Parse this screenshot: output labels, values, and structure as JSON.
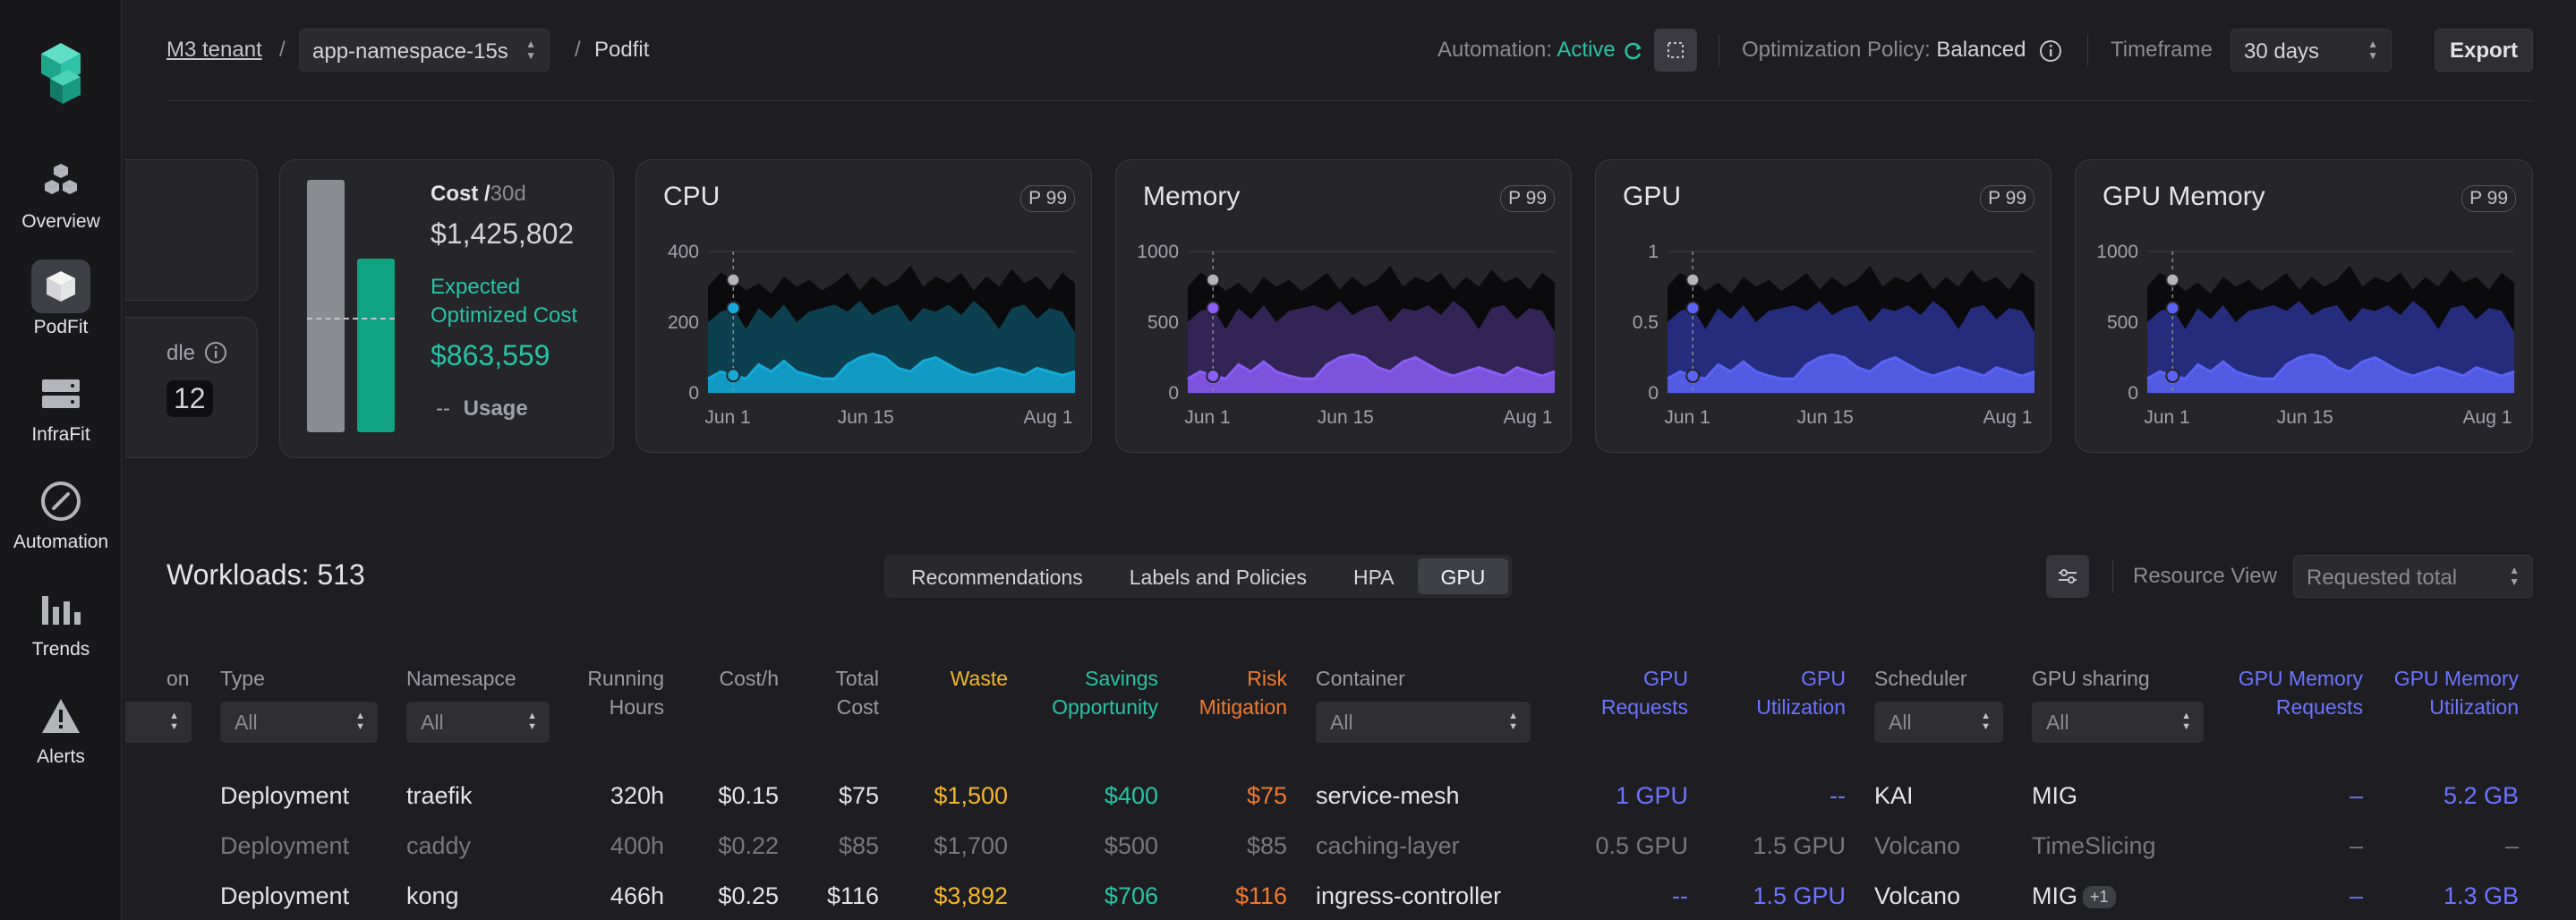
{
  "sidebar": {
    "items": [
      {
        "label": "Overview",
        "icon": "cubes-icon"
      },
      {
        "label": "PodFit",
        "icon": "cube-icon",
        "active": true
      },
      {
        "label": "InfraFit",
        "icon": "server-icon"
      },
      {
        "label": "Automation",
        "icon": "compass-icon"
      },
      {
        "label": "Trends",
        "icon": "bar-chart-icon"
      },
      {
        "label": "Alerts",
        "icon": "warning-icon"
      }
    ]
  },
  "header": {
    "tenant": "M3 tenant",
    "sep": "/",
    "namespace": "app-namespace-15s",
    "page": "Podfit",
    "automation_label": "Automation:",
    "automation_value": "Active",
    "policy_label": "Optimization Policy:",
    "policy_value": "Balanced",
    "timeframe_label": "Timeframe",
    "timeframe_value": "30 days",
    "export_label": "Export"
  },
  "partial_card": {
    "label_fragment": "dle",
    "value_fragment": "12"
  },
  "cost_card": {
    "title": "Cost /",
    "period": "30d",
    "cost": "$1,425,802",
    "expected_label_1": "Expected",
    "expected_label_2": "Optimized Cost",
    "optimized_cost": "$863,559",
    "usage_dash": "--",
    "usage_label": "Usage",
    "colors": {
      "current": "#8c8c93",
      "optimized": "#10a37f"
    }
  },
  "chart_data": [
    {
      "type": "area",
      "title": "CPU",
      "badge": "P 99",
      "yticks": [
        "400",
        "200",
        "0"
      ],
      "ylim": [
        0,
        400
      ],
      "xticks": [
        "Jun 1",
        "Jun 15",
        "Aug 1"
      ],
      "colors": {
        "top": "#0b0b0d",
        "mid": "#0e4a5c",
        "low": "#14a9d6"
      },
      "series": [
        {
          "values": [
            300,
            340,
            320,
            290,
            310,
            280,
            330,
            300,
            320,
            290,
            310,
            340,
            290,
            330,
            300,
            320,
            360,
            300,
            330,
            310,
            340,
            290,
            330,
            300,
            350,
            310,
            330,
            290,
            340,
            310
          ]
        },
        {
          "values": [
            200,
            230,
            240,
            180,
            240,
            210,
            250,
            200,
            230,
            240,
            250,
            230,
            260,
            220,
            240,
            250,
            200,
            240,
            230,
            250,
            220,
            260,
            230,
            180,
            240,
            250,
            210,
            240,
            230,
            170
          ]
        },
        {
          "values": [
            40,
            60,
            50,
            40,
            80,
            60,
            90,
            60,
            50,
            40,
            40,
            80,
            100,
            110,
            100,
            70,
            60,
            90,
            100,
            80,
            60,
            50,
            60,
            70,
            60,
            50,
            70,
            60,
            50,
            60
          ]
        }
      ]
    },
    {
      "type": "area",
      "title": "Memory",
      "badge": "P 99",
      "yticks": [
        "1000",
        "500",
        "0"
      ],
      "ylim": [
        0,
        1000
      ],
      "xticks": [
        "Jun 1",
        "Jun 15",
        "Aug 1"
      ],
      "colors": {
        "top": "#0b0b0d",
        "mid": "#3a2a64",
        "low": "#8b5cf6"
      },
      "series": [
        {
          "values": [
            750,
            850,
            800,
            720,
            780,
            700,
            820,
            750,
            800,
            720,
            780,
            850,
            730,
            820,
            750,
            800,
            900,
            750,
            820,
            780,
            850,
            730,
            820,
            750,
            870,
            780,
            820,
            730,
            850,
            780
          ]
        },
        {
          "values": [
            500,
            580,
            600,
            450,
            600,
            520,
            620,
            500,
            580,
            600,
            620,
            580,
            650,
            550,
            600,
            620,
            500,
            600,
            580,
            620,
            550,
            650,
            580,
            450,
            600,
            620,
            520,
            600,
            580,
            430
          ]
        },
        {
          "values": [
            100,
            150,
            120,
            100,
            200,
            150,
            220,
            150,
            120,
            100,
            100,
            200,
            250,
            270,
            250,
            180,
            150,
            220,
            250,
            200,
            150,
            120,
            150,
            180,
            150,
            120,
            180,
            150,
            120,
            150
          ]
        }
      ]
    },
    {
      "type": "area",
      "title": "GPU",
      "badge": "P 99",
      "yticks": [
        "1",
        "0.5",
        "0"
      ],
      "ylim": [
        0,
        1
      ],
      "xticks": [
        "Jun 1",
        "Jun 15",
        "Aug 1"
      ],
      "colors": {
        "top": "#0b0b0d",
        "mid": "#2a3390",
        "low": "#5b63f5"
      },
      "series": [
        {
          "values": [
            0.75,
            0.85,
            0.8,
            0.72,
            0.78,
            0.7,
            0.82,
            0.75,
            0.8,
            0.72,
            0.78,
            0.85,
            0.73,
            0.82,
            0.75,
            0.8,
            0.9,
            0.75,
            0.82,
            0.78,
            0.85,
            0.73,
            0.82,
            0.75,
            0.87,
            0.78,
            0.82,
            0.73,
            0.85,
            0.78
          ]
        },
        {
          "values": [
            0.5,
            0.58,
            0.6,
            0.45,
            0.6,
            0.52,
            0.62,
            0.5,
            0.58,
            0.6,
            0.62,
            0.58,
            0.65,
            0.55,
            0.6,
            0.62,
            0.5,
            0.6,
            0.58,
            0.62,
            0.55,
            0.65,
            0.58,
            0.45,
            0.6,
            0.62,
            0.52,
            0.6,
            0.58,
            0.43
          ]
        },
        {
          "values": [
            0.1,
            0.15,
            0.12,
            0.1,
            0.2,
            0.15,
            0.22,
            0.15,
            0.12,
            0.1,
            0.1,
            0.2,
            0.25,
            0.27,
            0.25,
            0.18,
            0.15,
            0.22,
            0.25,
            0.2,
            0.15,
            0.12,
            0.15,
            0.18,
            0.15,
            0.12,
            0.18,
            0.15,
            0.12,
            0.15
          ]
        }
      ]
    },
    {
      "type": "area",
      "title": "GPU Memory",
      "badge": "P 99",
      "yticks": [
        "1000",
        "500",
        "0"
      ],
      "ylim": [
        0,
        1000
      ],
      "xticks": [
        "Jun 1",
        "Jun 15",
        "Aug 1"
      ],
      "colors": {
        "top": "#0b0b0d",
        "mid": "#2a3390",
        "low": "#5b63f5"
      },
      "series": [
        {
          "values": [
            750,
            850,
            800,
            720,
            780,
            700,
            820,
            750,
            800,
            720,
            780,
            850,
            730,
            820,
            750,
            800,
            900,
            750,
            820,
            780,
            850,
            730,
            820,
            750,
            870,
            780,
            820,
            730,
            850,
            780
          ]
        },
        {
          "values": [
            500,
            580,
            600,
            450,
            600,
            520,
            620,
            500,
            580,
            600,
            620,
            580,
            650,
            550,
            600,
            620,
            500,
            600,
            580,
            620,
            550,
            650,
            580,
            450,
            600,
            620,
            520,
            600,
            580,
            430
          ]
        },
        {
          "values": [
            100,
            150,
            120,
            100,
            200,
            150,
            220,
            150,
            120,
            100,
            100,
            200,
            250,
            270,
            250,
            180,
            150,
            220,
            250,
            200,
            150,
            120,
            150,
            180,
            150,
            120,
            180,
            150,
            120,
            150
          ]
        }
      ]
    }
  ],
  "workloads": {
    "title": "Workloads: 513",
    "tabs": [
      "Recommendations",
      "Labels and Policies",
      "HPA",
      "GPU"
    ],
    "active_tab": "GPU",
    "resource_view_label": "Resource View",
    "resource_view_value": "Requested total"
  },
  "table": {
    "headers": {
      "partial": "on",
      "type": "Type",
      "namespace": "Namesapce",
      "running_1": "Running",
      "running_2": "Hours",
      "costh": "Cost/h",
      "total_1": "Total",
      "total_2": "Cost",
      "waste": "Waste",
      "savings_1": "Savings",
      "savings_2": "Opportunity",
      "risk_1": "Risk",
      "risk_2": "Mitigation",
      "container": "Container",
      "gpureq_1": "GPU",
      "gpureq_2": "Requests",
      "gpuutil_1": "GPU",
      "gpuutil_2": "Utilization",
      "scheduler": "Scheduler",
      "sharing": "GPU sharing",
      "gmemreq_1": "GPU Memory",
      "gmemreq_2": "Requests",
      "gmemutil_1": "GPU Memory",
      "gmemutil_2": "Utilization"
    },
    "filter_all": "All",
    "rows": [
      {
        "type": "Deployment",
        "namespace": "traefik",
        "hours": "320h",
        "costh": "$0.15",
        "total": "$75",
        "waste": "$1,500",
        "savings": "$400",
        "risk": "$75",
        "container": "service-mesh",
        "gpureq": "1 GPU",
        "gpuutil": "--",
        "scheduler": "KAI",
        "sharing": "MIG",
        "badge": "",
        "gmemreq": "–",
        "gmemutil": "5.2 GB",
        "dim": false
      },
      {
        "type": "Deployment",
        "namespace": "caddy",
        "hours": "400h",
        "costh": "$0.22",
        "total": "$85",
        "waste": "$1,700",
        "savings": "$500",
        "risk": "$85",
        "container": "caching-layer",
        "gpureq": "0.5 GPU",
        "gpuutil": "1.5 GPU",
        "scheduler": "Volcano",
        "sharing": "TimeSlicing",
        "badge": "",
        "gmemreq": "–",
        "gmemutil": "–",
        "dim": true
      },
      {
        "type": "Deployment",
        "namespace": "kong",
        "hours": "466h",
        "costh": "$0.25",
        "total": "$116",
        "waste": "$3,892",
        "savings": "$706",
        "risk": "$116",
        "container": "ingress-controller",
        "gpureq": "--",
        "gpuutil": "1.5 GPU",
        "scheduler": "Volcano",
        "sharing": "MIG",
        "badge": "+1",
        "gmemreq": "–",
        "gmemutil": "1.3 GB",
        "dim": false
      }
    ]
  }
}
